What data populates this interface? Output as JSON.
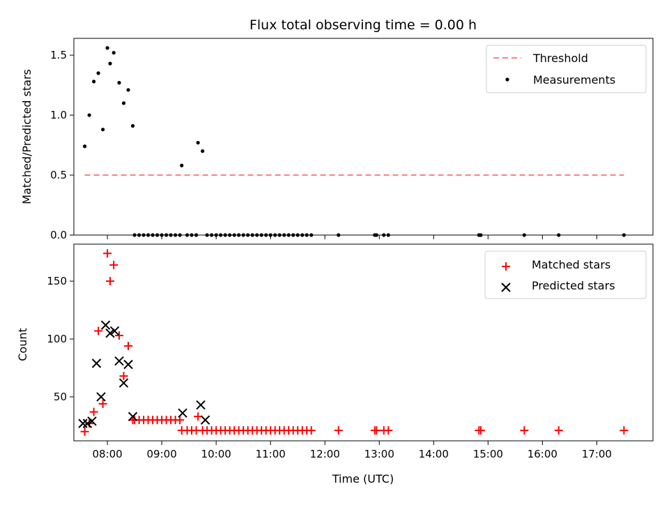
{
  "chart_data": [
    {
      "type": "scatter",
      "title": "Flux total observing time = 0.00 h",
      "xlabel": "",
      "ylabel": "Matched/Predicted stars",
      "xlim": [
        "07:23",
        "18:02"
      ],
      "ylim": [
        0,
        1.64
      ],
      "yticks": [
        0.0,
        0.5,
        1.0,
        1.5
      ],
      "ytick_labels": [
        "0.0",
        "0.5",
        "1.0",
        "1.5"
      ],
      "grid": false,
      "legend_position": "top-right",
      "threshold": {
        "name": "Threshold",
        "color": "#ff7f7f",
        "style": "dashed",
        "y": 0.5,
        "x_start": "07:35",
        "x_end": "17:30"
      },
      "series": [
        {
          "name": "Measurements",
          "marker": "dot",
          "color": "#000000",
          "x": [
            "07:35",
            "07:40",
            "07:45",
            "07:50",
            "07:55",
            "08:00",
            "08:03",
            "08:07",
            "08:13",
            "08:18",
            "08:23",
            "08:28",
            "08:30",
            "08:35",
            "08:40",
            "08:45",
            "08:50",
            "08:55",
            "09:00",
            "09:05",
            "09:10",
            "09:15",
            "09:20",
            "09:22",
            "09:28",
            "09:33",
            "09:38",
            "09:40",
            "09:45",
            "09:50",
            "09:55",
            "10:00",
            "10:05",
            "10:10",
            "10:15",
            "10:20",
            "10:25",
            "10:30",
            "10:35",
            "10:40",
            "10:45",
            "10:50",
            "10:55",
            "11:00",
            "11:05",
            "11:10",
            "11:15",
            "11:20",
            "11:25",
            "11:30",
            "11:35",
            "11:40",
            "11:45",
            "12:15",
            "12:55",
            "12:57",
            "13:05",
            "13:10",
            "14:50",
            "14:52",
            "15:40",
            "16:18",
            "17:30"
          ],
          "y": [
            0.74,
            1.0,
            1.28,
            1.35,
            0.88,
            1.56,
            1.43,
            1.52,
            1.27,
            1.1,
            1.21,
            0.91,
            0,
            0,
            0,
            0,
            0,
            0,
            0,
            0,
            0,
            0,
            0,
            0.58,
            0,
            0,
            0,
            0.77,
            0.7,
            0,
            0,
            0,
            0,
            0,
            0,
            0,
            0,
            0,
            0,
            0,
            0,
            0,
            0,
            0,
            0,
            0,
            0,
            0,
            0,
            0,
            0,
            0,
            0,
            0,
            0,
            0,
            0,
            0,
            0,
            0,
            0,
            0,
            0
          ]
        }
      ]
    },
    {
      "type": "scatter",
      "title": "",
      "xlabel": "Time (UTC)",
      "ylabel": "Count",
      "xlim": [
        "07:23",
        "18:02"
      ],
      "ylim": [
        12,
        182
      ],
      "yticks": [
        50,
        100,
        150
      ],
      "ytick_labels": [
        "50",
        "100",
        "150"
      ],
      "xticks": [
        "08:00",
        "09:00",
        "10:00",
        "11:00",
        "12:00",
        "13:00",
        "14:00",
        "15:00",
        "16:00",
        "17:00"
      ],
      "grid": false,
      "legend_position": "top-right",
      "series": [
        {
          "name": "Matched stars",
          "marker": "plus",
          "color": "#ff0000",
          "x": [
            "07:35",
            "07:40",
            "07:45",
            "07:50",
            "07:55",
            "08:00",
            "08:03",
            "08:07",
            "08:13",
            "08:18",
            "08:23",
            "08:28",
            "08:30",
            "08:35",
            "08:40",
            "08:45",
            "08:50",
            "08:55",
            "09:00",
            "09:05",
            "09:10",
            "09:15",
            "09:20",
            "09:22",
            "09:28",
            "09:33",
            "09:38",
            "09:40",
            "09:45",
            "09:50",
            "09:55",
            "10:00",
            "10:05",
            "10:10",
            "10:15",
            "10:20",
            "10:25",
            "10:30",
            "10:35",
            "10:40",
            "10:45",
            "10:50",
            "10:55",
            "11:00",
            "11:05",
            "11:10",
            "11:15",
            "11:20",
            "11:25",
            "11:30",
            "11:35",
            "11:40",
            "11:45",
            "12:15",
            "12:55",
            "12:57",
            "13:05",
            "13:10",
            "14:50",
            "14:52",
            "15:40",
            "16:18",
            "17:30"
          ],
          "y": [
            20,
            27,
            37,
            107,
            44,
            174,
            150,
            164,
            103,
            68,
            94,
            30,
            30,
            30,
            30,
            30,
            30,
            30,
            30,
            30,
            30,
            30,
            30,
            21,
            21,
            21,
            21,
            33,
            21,
            21,
            21,
            21,
            21,
            21,
            21,
            21,
            21,
            21,
            21,
            21,
            21,
            21,
            21,
            21,
            21,
            21,
            21,
            21,
            21,
            21,
            21,
            21,
            21,
            21,
            21,
            21,
            21,
            21,
            21,
            21,
            21,
            21,
            21
          ]
        },
        {
          "name": "Predicted stars",
          "marker": "x",
          "color": "#000000",
          "x": [
            "07:33",
            "07:38",
            "07:43",
            "07:48",
            "07:53",
            "07:58",
            "08:03",
            "08:08",
            "08:13",
            "08:18",
            "08:23",
            "08:28",
            "09:23",
            "09:43",
            "09:48"
          ],
          "y": [
            27,
            27,
            29,
            79,
            50,
            112,
            105,
            107,
            81,
            62,
            78,
            33,
            36,
            43,
            30
          ]
        }
      ]
    }
  ]
}
